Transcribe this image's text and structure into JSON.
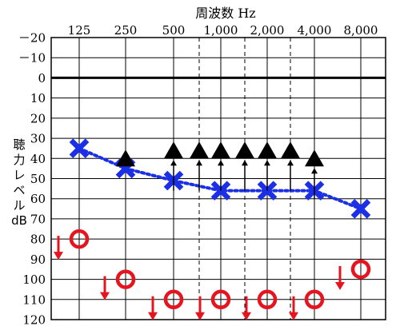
{
  "chart_data": {
    "type": "scatter",
    "title": "",
    "xlabel": "周波数 Hz",
    "ylabel_lines": [
      "聴",
      "力",
      "レ",
      "ベ",
      "ル",
      "dB"
    ],
    "x_categories": [
      "125",
      "250",
      "500",
      "1,000",
      "2,000",
      "4,000",
      "8,000"
    ],
    "x_half_octaves": [
      "750",
      "1,500",
      "3,000"
    ],
    "y_ticks": [
      "－20",
      "－10",
      "0",
      "10",
      "20",
      "30",
      "40",
      "50",
      "60",
      "70",
      "80",
      "90",
      "100",
      "110",
      "120"
    ],
    "ylim": [
      -20,
      120
    ],
    "y_inverted": true,
    "zero_line_bold": true,
    "series": [
      {
        "marker": "x",
        "color": "#1a2fe6",
        "line_style": "dotted",
        "points": [
          {
            "freq": "125",
            "db": 35
          },
          {
            "freq": "250",
            "db": 45
          },
          {
            "freq": "500",
            "db": 51
          },
          {
            "freq": "1,000",
            "db": 56
          },
          {
            "freq": "2,000",
            "db": 56
          },
          {
            "freq": "4,000",
            "db": 56
          },
          {
            "freq": "8,000",
            "db": 65
          }
        ]
      },
      {
        "marker": "triangle",
        "color": "#000000",
        "scale_out_arrow": "down",
        "points": [
          {
            "freq": "250",
            "db": 40,
            "arrow": false
          },
          {
            "freq": "500",
            "db": 36,
            "arrow": true
          },
          {
            "freq": "750",
            "db": 36,
            "arrow": true
          },
          {
            "freq": "1,000",
            "db": 36,
            "arrow": true
          },
          {
            "freq": "1,500",
            "db": 36,
            "arrow": true
          },
          {
            "freq": "2,000",
            "db": 36,
            "arrow": true
          },
          {
            "freq": "3,000",
            "db": 36,
            "arrow": true
          },
          {
            "freq": "4,000",
            "db": 40,
            "arrow": true
          }
        ]
      },
      {
        "marker": "circle",
        "color": "#e6141e",
        "scale_out_arrow": "down-left",
        "points": [
          {
            "freq": "125",
            "db": 80
          },
          {
            "freq": "250",
            "db": 100
          },
          {
            "freq": "500",
            "db": 110
          },
          {
            "freq": "1,000",
            "db": 110
          },
          {
            "freq": "2,000",
            "db": 110
          },
          {
            "freq": "4,000",
            "db": 110
          },
          {
            "freq": "8,000",
            "db": 95
          }
        ]
      }
    ]
  }
}
